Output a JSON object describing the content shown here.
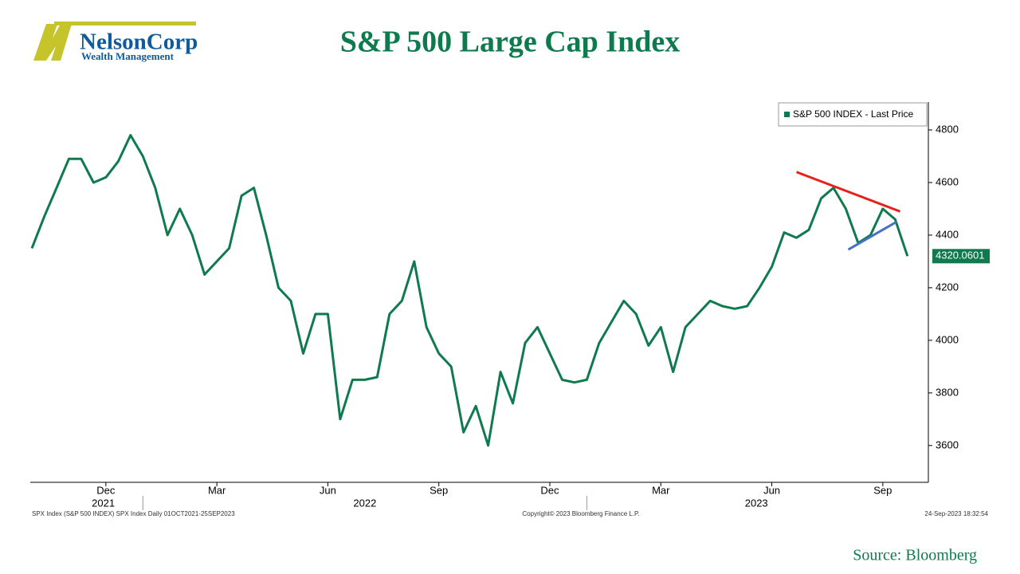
{
  "logo": {
    "name": "NelsonCorp",
    "tagline": "Wealth Management"
  },
  "chart_data": {
    "type": "line",
    "title": "S&P 500 Large Cap Index",
    "series": [
      {
        "name": "S&P 500 INDEX - Last Price",
        "color": "#0e7a4e",
        "values": [
          4350,
          4470,
          4580,
          4690,
          4690,
          4600,
          4620,
          4680,
          4780,
          4700,
          4580,
          4400,
          4500,
          4400,
          4250,
          4300,
          4350,
          4550,
          4580,
          4400,
          4200,
          4150,
          3950,
          4100,
          4100,
          3700,
          3850,
          3850,
          3860,
          4100,
          4150,
          4300,
          4050,
          3950,
          3900,
          3650,
          3750,
          3600,
          3880,
          3760,
          3990,
          4050,
          3950,
          3850,
          3840,
          3850,
          3990,
          4070,
          4150,
          4100,
          3980,
          4050,
          3880,
          4050,
          4100,
          4150,
          4130,
          4120,
          4130,
          4200,
          4280,
          4410,
          4390,
          4420,
          4540,
          4580,
          4500,
          4370,
          4400,
          4500,
          4460,
          4320.0601
        ]
      }
    ],
    "xlim": [
      0,
      72.5
    ],
    "xticks": [
      {
        "value": 6,
        "label": "Dec"
      },
      {
        "value": 15,
        "label": "Mar"
      },
      {
        "value": 24,
        "label": "Jun"
      },
      {
        "value": 33,
        "label": "Sep"
      },
      {
        "value": 42,
        "label": "Dec"
      },
      {
        "value": 51,
        "label": "Mar"
      },
      {
        "value": 60,
        "label": "Jun"
      },
      {
        "value": 69,
        "label": "Sep"
      }
    ],
    "year_labels": [
      "2021",
      "2022",
      "2023"
    ],
    "ylim": [
      3460,
      4900
    ],
    "yticks": [
      3600,
      3800,
      4000,
      4200,
      4400,
      4600,
      4800
    ],
    "trend_lines": [
      {
        "color": "#e8201c",
        "x": [
          62,
          70.4
        ],
        "y": [
          4640,
          4490
        ]
      },
      {
        "color": "#4472c4",
        "x": [
          66.2,
          70.1
        ],
        "y": [
          4345,
          4450
        ]
      }
    ],
    "footer_left": "SPX Index (S&P 500 INDEX) SPX Index  Daily 01OCT2021-25SEP2023",
    "footer_center": "Copyright© 2023 Bloomberg Finance L.P.",
    "footer_right": "24-Sep-2023 18:32:54",
    "source": "Source: Bloomberg"
  }
}
